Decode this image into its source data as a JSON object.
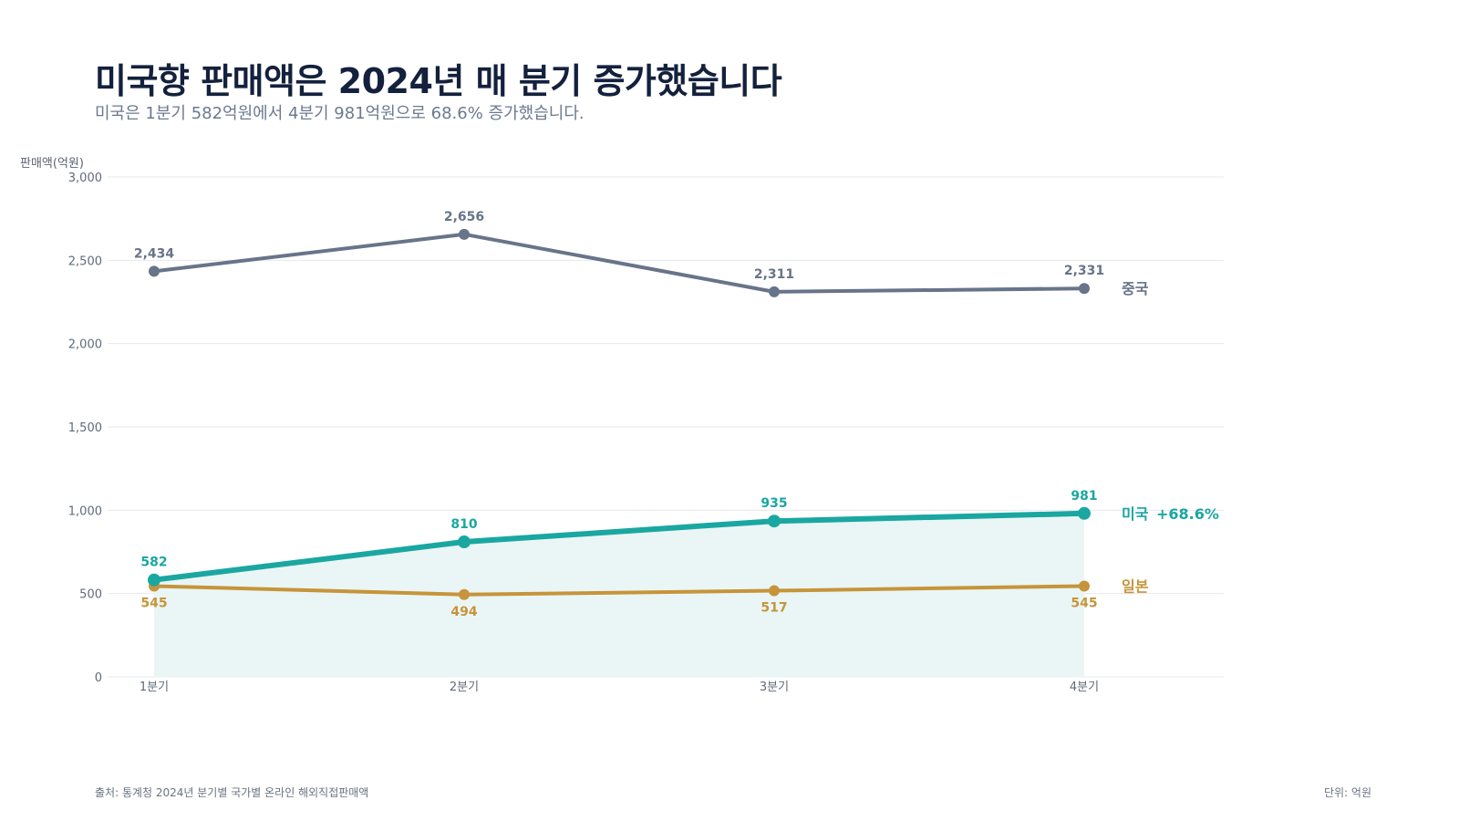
{
  "title": "미국향 판매액은 2024년 매 분기 증가했습니다",
  "subtitle": "미국은 1분기 582억원에서 4분기 981억원으로 68.6% 증가했습니다.",
  "ylabel": "판매액(억원)",
  "source": "출처: 통계청 2024년 분기별 국가별 온라인 해외직접판매액",
  "unit": "단위: 억원",
  "chart_data": {
    "type": "line",
    "categories": [
      "1분기",
      "2분기",
      "3분기",
      "4분기"
    ],
    "ylim": [
      0,
      3000
    ],
    "yticks": [
      0,
      500,
      1000,
      1500,
      2000,
      2500,
      3000
    ],
    "ytick_labels": [
      "0",
      "500",
      "1,000",
      "1,500",
      "2,000",
      "2,500",
      "3,000"
    ],
    "grid": true,
    "ylabel": "판매액(억원)",
    "series": [
      {
        "name": "중국",
        "values": [
          2434,
          2656,
          2311,
          2331
        ],
        "value_labels": [
          "2,434",
          "2,656",
          "2,311",
          "2,331"
        ],
        "color": "#687489",
        "label_position": "above"
      },
      {
        "name": "미국",
        "values": [
          582,
          810,
          935,
          981
        ],
        "value_labels": [
          "582",
          "810",
          "935",
          "981"
        ],
        "color": "#1aa7a1",
        "area_fill": "#eaf6f5",
        "label_position": "above",
        "annotation": "+68.6%"
      },
      {
        "name": "일본",
        "values": [
          545,
          494,
          517,
          545
        ],
        "value_labels": [
          "545",
          "494",
          "517",
          "545"
        ],
        "color": "#c6943a",
        "label_position": "below"
      }
    ]
  }
}
